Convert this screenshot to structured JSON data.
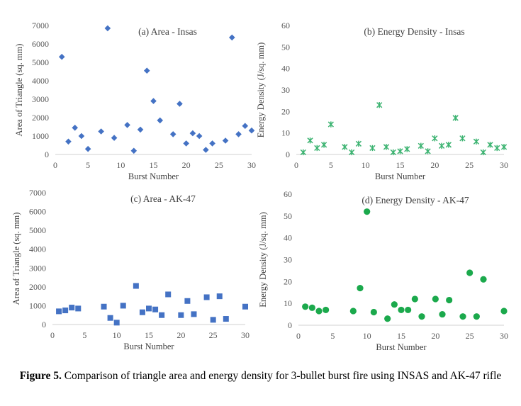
{
  "caption": {
    "label": "Figure 5.",
    "text": "Comparison of triangle area and energy density for 3-bullet burst fire using INSAS and AK-47 rifle"
  },
  "chart_data": [
    {
      "type": "scatter",
      "title": "(a) Area - Insas",
      "xlabel": "Burst Number",
      "ylabel": "Area of Triangle (sq. mm)",
      "xlim": [
        0,
        30
      ],
      "ylim": [
        0,
        7000
      ],
      "xticks": [
        0,
        5,
        10,
        15,
        20,
        25,
        30
      ],
      "yticks": [
        0,
        1000,
        2000,
        3000,
        4000,
        5000,
        6000,
        7000
      ],
      "grid": false,
      "marker": "diamond",
      "color": "#4472C4",
      "x": [
        1,
        2,
        3,
        4,
        5,
        7,
        8,
        9,
        11,
        12,
        13,
        14,
        15,
        16,
        18,
        19,
        20,
        21,
        22,
        23,
        24,
        26,
        27,
        28,
        29,
        30
      ],
      "y": [
        5300,
        700,
        1450,
        1000,
        300,
        1250,
        6850,
        900,
        1600,
        200,
        1350,
        4550,
        2900,
        1850,
        1100,
        2750,
        600,
        1150,
        1000,
        250,
        600,
        750,
        6350,
        1100,
        1550,
        1300
      ]
    },
    {
      "type": "scatter",
      "title": "(b) Energy Density - Insas",
      "xlabel": "Burst Number",
      "ylabel": "Energy Density (J/sq. mm)",
      "xlim": [
        0,
        30
      ],
      "ylim": [
        0,
        60
      ],
      "xticks": [
        0,
        5,
        10,
        15,
        20,
        25,
        30
      ],
      "yticks": [
        0,
        10,
        20,
        30,
        40,
        50,
        60
      ],
      "grid": false,
      "marker": "star",
      "color": "#3CB371",
      "x": [
        1,
        2,
        3,
        4,
        5,
        7,
        8,
        9,
        11,
        12,
        13,
        14,
        15,
        16,
        18,
        19,
        20,
        21,
        22,
        23,
        24,
        26,
        27,
        28,
        29,
        30
      ],
      "y": [
        1,
        6.5,
        3,
        4.5,
        14,
        3.5,
        1,
        5,
        3,
        23,
        3.5,
        1,
        1.5,
        2.5,
        4,
        1.5,
        7.5,
        4,
        4.5,
        17,
        7.5,
        6,
        1,
        4.5,
        3,
        3.5
      ]
    },
    {
      "type": "scatter",
      "title": "(c) Area - AK-47",
      "xlabel": "Burst Number",
      "ylabel": "Area of Triangle (sq. mm)",
      "xlim": [
        0,
        30
      ],
      "ylim": [
        0,
        7000
      ],
      "xticks": [
        0,
        5,
        10,
        15,
        20,
        25,
        30
      ],
      "yticks": [
        0,
        1000,
        2000,
        3000,
        4000,
        5000,
        6000,
        7000
      ],
      "grid": false,
      "marker": "square",
      "color": "#4472C4",
      "x": [
        1,
        2,
        3,
        4,
        8,
        9,
        10,
        11,
        13,
        14,
        15,
        16,
        17,
        18,
        20,
        21,
        22,
        24,
        25,
        26,
        27,
        30
      ],
      "y": [
        700,
        750,
        900,
        850,
        950,
        350,
        100,
        1000,
        2050,
        650,
        850,
        800,
        500,
        1600,
        500,
        1250,
        550,
        1450,
        250,
        1500,
        300,
        950
      ]
    },
    {
      "type": "scatter",
      "title": "(d) Energy Density - AK-47",
      "xlabel": "Burst Number",
      "ylabel": "Energy Density (J/sq. mm)",
      "xlim": [
        0,
        30
      ],
      "ylim": [
        0,
        60
      ],
      "xticks": [
        0,
        5,
        10,
        15,
        20,
        25,
        30
      ],
      "yticks": [
        0,
        10,
        20,
        30,
        40,
        50,
        60
      ],
      "grid": false,
      "marker": "circle",
      "color": "#1BA94C",
      "x": [
        1,
        2,
        3,
        4,
        8,
        9,
        10,
        11,
        13,
        14,
        15,
        16,
        17,
        18,
        20,
        21,
        22,
        24,
        25,
        26,
        27,
        30
      ],
      "y": [
        8.5,
        8,
        6.5,
        7,
        6.5,
        17,
        52,
        6,
        3,
        9.5,
        7,
        7,
        12,
        4,
        12,
        5,
        11.5,
        4,
        24,
        4,
        21,
        6.5
      ]
    }
  ]
}
